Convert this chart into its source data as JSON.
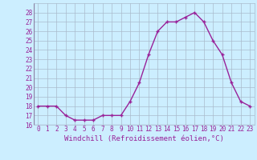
{
  "x": [
    0,
    1,
    2,
    3,
    4,
    5,
    6,
    7,
    8,
    9,
    10,
    11,
    12,
    13,
    14,
    15,
    16,
    17,
    18,
    19,
    20,
    21,
    22,
    23
  ],
  "y": [
    18,
    18,
    18,
    17,
    16.5,
    16.5,
    16.5,
    17,
    17,
    17,
    18.5,
    20.5,
    23.5,
    26,
    27,
    27,
    27.5,
    28,
    27,
    25,
    23.5,
    20.5,
    18.5,
    18
  ],
  "line_color": "#992299",
  "marker": "+",
  "marker_size": 3,
  "bg_color": "#cceeff",
  "grid_color": "#aabbcc",
  "xlabel": "Windchill (Refroidissement éolien,°C)",
  "ylim": [
    16,
    29
  ],
  "yticks": [
    16,
    17,
    18,
    19,
    20,
    21,
    22,
    23,
    24,
    25,
    26,
    27,
    28
  ],
  "xlim": [
    -0.5,
    23.5
  ],
  "xticks": [
    0,
    1,
    2,
    3,
    4,
    5,
    6,
    7,
    8,
    9,
    10,
    11,
    12,
    13,
    14,
    15,
    16,
    17,
    18,
    19,
    20,
    21,
    22,
    23
  ],
  "tick_label_color": "#992299",
  "tick_label_fontsize": 5.5,
  "xlabel_fontsize": 6.5,
  "linewidth": 1.0
}
